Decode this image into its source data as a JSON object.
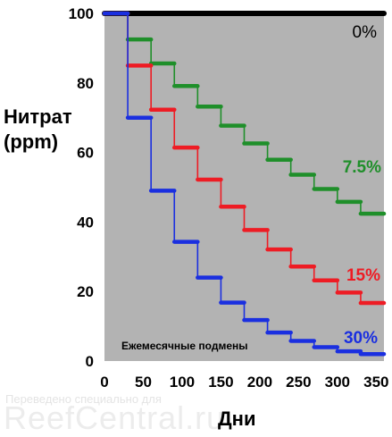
{
  "watermark": {
    "line1": "Переведено специально для",
    "line2": "ReefCentral.ru"
  },
  "chart_data": {
    "type": "line",
    "title": "",
    "xlabel": "Дни",
    "ylabel_line1": "Нитрат",
    "ylabel_line2": "(ppm)",
    "xlim": [
      0,
      360
    ],
    "ylim": [
      0,
      100
    ],
    "x_ticks": [
      "0",
      "50",
      "100",
      "150",
      "200",
      "250",
      "300",
      "350"
    ],
    "y_ticks": [
      "0",
      "20",
      "40",
      "60",
      "80",
      "100"
    ],
    "grid": false,
    "background": "#b3b3b3",
    "annotation": "Ежемесячные подмены",
    "series": [
      {
        "name": "0%",
        "color": "#000000",
        "x": [
          0,
          360
        ],
        "y": [
          100,
          100
        ]
      },
      {
        "name": "7.5%",
        "color": "#1f8f2a",
        "x": [
          0,
          30,
          30,
          60,
          60,
          90,
          90,
          120,
          120,
          150,
          150,
          180,
          180,
          210,
          210,
          240,
          240,
          270,
          270,
          300,
          300,
          330,
          330,
          360
        ],
        "y": [
          100,
          100,
          92.5,
          92.5,
          85.6,
          85.6,
          79.1,
          79.1,
          73.2,
          73.2,
          67.7,
          67.7,
          62.6,
          62.6,
          57.9,
          57.9,
          53.6,
          53.6,
          49.5,
          49.5,
          45.8,
          45.8,
          42.4,
          42.4
        ]
      },
      {
        "name": "15%",
        "color": "#ee1c24",
        "x": [
          0,
          30,
          30,
          60,
          60,
          90,
          90,
          120,
          120,
          150,
          150,
          180,
          180,
          210,
          210,
          240,
          240,
          270,
          270,
          300,
          300,
          330,
          330,
          360
        ],
        "y": [
          100,
          100,
          85,
          85,
          72.3,
          72.3,
          61.4,
          61.4,
          52.2,
          52.2,
          44.4,
          44.4,
          37.7,
          37.7,
          32.1,
          32.1,
          27.2,
          27.2,
          23.2,
          23.2,
          19.7,
          19.7,
          16.7,
          16.7
        ]
      },
      {
        "name": "30%",
        "color": "#1a2fe0",
        "x": [
          0,
          30,
          30,
          60,
          60,
          90,
          90,
          120,
          120,
          150,
          150,
          180,
          180,
          210,
          210,
          240,
          240,
          270,
          270,
          300,
          300,
          330,
          330,
          360
        ],
        "y": [
          100,
          100,
          70,
          70,
          49,
          49,
          34.3,
          34.3,
          24,
          24,
          16.8,
          16.8,
          11.8,
          11.8,
          8.2,
          8.2,
          5.8,
          5.8,
          4,
          4,
          2.8,
          2.8,
          2,
          2
        ]
      }
    ],
    "series_labels_text": [
      "0%",
      "7.5%",
      "15%",
      "30%"
    ]
  }
}
